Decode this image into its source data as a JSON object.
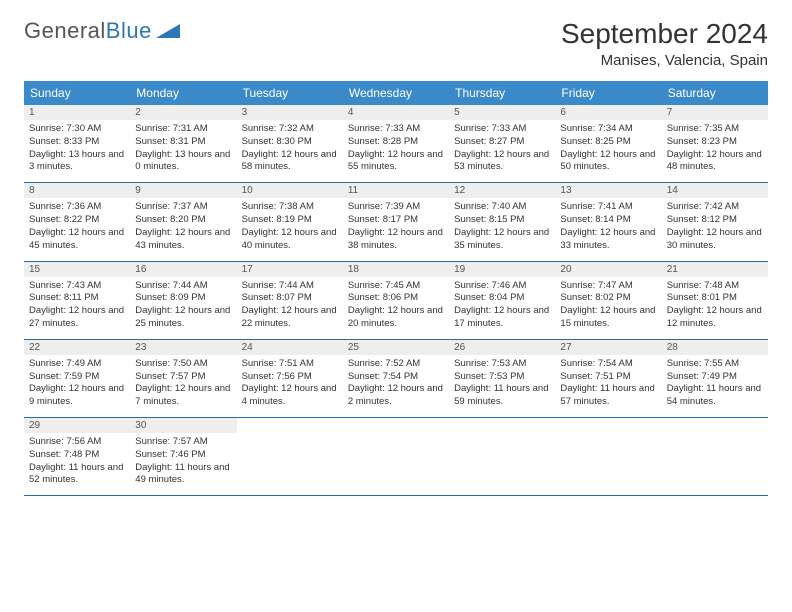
{
  "brand": {
    "name_part1": "General",
    "name_part2": "Blue",
    "logo_color": "#2b77b8"
  },
  "title": "September 2024",
  "location": "Manises, Valencia, Spain",
  "colors": {
    "header_bg": "#3a89c9",
    "header_text": "#ffffff",
    "daynum_bg": "#eeeeee",
    "row_border": "#2f6a9e",
    "text": "#333333"
  },
  "weekday_labels": [
    "Sunday",
    "Monday",
    "Tuesday",
    "Wednesday",
    "Thursday",
    "Friday",
    "Saturday"
  ],
  "days": [
    {
      "n": "1",
      "sunrise": "7:30 AM",
      "sunset": "8:33 PM",
      "daylight": "13 hours and 3 minutes."
    },
    {
      "n": "2",
      "sunrise": "7:31 AM",
      "sunset": "8:31 PM",
      "daylight": "13 hours and 0 minutes."
    },
    {
      "n": "3",
      "sunrise": "7:32 AM",
      "sunset": "8:30 PM",
      "daylight": "12 hours and 58 minutes."
    },
    {
      "n": "4",
      "sunrise": "7:33 AM",
      "sunset": "8:28 PM",
      "daylight": "12 hours and 55 minutes."
    },
    {
      "n": "5",
      "sunrise": "7:33 AM",
      "sunset": "8:27 PM",
      "daylight": "12 hours and 53 minutes."
    },
    {
      "n": "6",
      "sunrise": "7:34 AM",
      "sunset": "8:25 PM",
      "daylight": "12 hours and 50 minutes."
    },
    {
      "n": "7",
      "sunrise": "7:35 AM",
      "sunset": "8:23 PM",
      "daylight": "12 hours and 48 minutes."
    },
    {
      "n": "8",
      "sunrise": "7:36 AM",
      "sunset": "8:22 PM",
      "daylight": "12 hours and 45 minutes."
    },
    {
      "n": "9",
      "sunrise": "7:37 AM",
      "sunset": "8:20 PM",
      "daylight": "12 hours and 43 minutes."
    },
    {
      "n": "10",
      "sunrise": "7:38 AM",
      "sunset": "8:19 PM",
      "daylight": "12 hours and 40 minutes."
    },
    {
      "n": "11",
      "sunrise": "7:39 AM",
      "sunset": "8:17 PM",
      "daylight": "12 hours and 38 minutes."
    },
    {
      "n": "12",
      "sunrise": "7:40 AM",
      "sunset": "8:15 PM",
      "daylight": "12 hours and 35 minutes."
    },
    {
      "n": "13",
      "sunrise": "7:41 AM",
      "sunset": "8:14 PM",
      "daylight": "12 hours and 33 minutes."
    },
    {
      "n": "14",
      "sunrise": "7:42 AM",
      "sunset": "8:12 PM",
      "daylight": "12 hours and 30 minutes."
    },
    {
      "n": "15",
      "sunrise": "7:43 AM",
      "sunset": "8:11 PM",
      "daylight": "12 hours and 27 minutes."
    },
    {
      "n": "16",
      "sunrise": "7:44 AM",
      "sunset": "8:09 PM",
      "daylight": "12 hours and 25 minutes."
    },
    {
      "n": "17",
      "sunrise": "7:44 AM",
      "sunset": "8:07 PM",
      "daylight": "12 hours and 22 minutes."
    },
    {
      "n": "18",
      "sunrise": "7:45 AM",
      "sunset": "8:06 PM",
      "daylight": "12 hours and 20 minutes."
    },
    {
      "n": "19",
      "sunrise": "7:46 AM",
      "sunset": "8:04 PM",
      "daylight": "12 hours and 17 minutes."
    },
    {
      "n": "20",
      "sunrise": "7:47 AM",
      "sunset": "8:02 PM",
      "daylight": "12 hours and 15 minutes."
    },
    {
      "n": "21",
      "sunrise": "7:48 AM",
      "sunset": "8:01 PM",
      "daylight": "12 hours and 12 minutes."
    },
    {
      "n": "22",
      "sunrise": "7:49 AM",
      "sunset": "7:59 PM",
      "daylight": "12 hours and 9 minutes."
    },
    {
      "n": "23",
      "sunrise": "7:50 AM",
      "sunset": "7:57 PM",
      "daylight": "12 hours and 7 minutes."
    },
    {
      "n": "24",
      "sunrise": "7:51 AM",
      "sunset": "7:56 PM",
      "daylight": "12 hours and 4 minutes."
    },
    {
      "n": "25",
      "sunrise": "7:52 AM",
      "sunset": "7:54 PM",
      "daylight": "12 hours and 2 minutes."
    },
    {
      "n": "26",
      "sunrise": "7:53 AM",
      "sunset": "7:53 PM",
      "daylight": "11 hours and 59 minutes."
    },
    {
      "n": "27",
      "sunrise": "7:54 AM",
      "sunset": "7:51 PM",
      "daylight": "11 hours and 57 minutes."
    },
    {
      "n": "28",
      "sunrise": "7:55 AM",
      "sunset": "7:49 PM",
      "daylight": "11 hours and 54 minutes."
    },
    {
      "n": "29",
      "sunrise": "7:56 AM",
      "sunset": "7:48 PM",
      "daylight": "11 hours and 52 minutes."
    },
    {
      "n": "30",
      "sunrise": "7:57 AM",
      "sunset": "7:46 PM",
      "daylight": "11 hours and 49 minutes."
    }
  ],
  "labels": {
    "sunrise": "Sunrise: ",
    "sunset": "Sunset: ",
    "daylight": "Daylight: "
  },
  "grid": {
    "start_weekday": 0,
    "total_cells": 35
  }
}
